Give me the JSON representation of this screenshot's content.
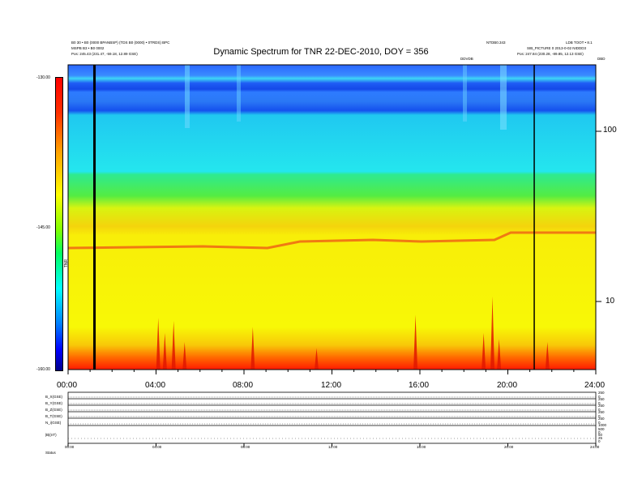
{
  "header": {
    "title": "Dynamic Spectrum for TNR 22-DEC-2010, DOY = 356",
    "left_line1": "B0 30 • B0 (0000 BPANBSP) (TDS B0 (0000) • 0TRDS) BPC",
    "left_line2": "MSPB B3 • B0 0002",
    "left_line3": "Pos:   245.43 (231.47, -59.18, 12.89 GSE)",
    "right_line1a": "NTDB0.343",
    "right_line1b": "LDB TOOT • 8.1",
    "right_line2": "SIB_PICTURE 0 2013-0-02 NIDDD3",
    "right_line3": "Pos:   247.84 (230.28, -89.85, 12.13 GSE)",
    "center_small": "DDVDB",
    "right_small": "DBD"
  },
  "chart_data": {
    "type": "heatmap",
    "title": "Dynamic Spectrum for TNR 22-DEC-2010, DOY = 356",
    "x_tick_labels": [
      "00:00",
      "04:00",
      "08:00",
      "12:00",
      "16:00",
      "20:00",
      "24:00"
    ],
    "x_range_hours": [
      0,
      24
    ],
    "y_scale": "log",
    "y_tick_labels": [
      "100",
      "10"
    ],
    "colorbar": {
      "label": "TNR",
      "ticks": [
        "-130.00",
        "-145.00",
        "-160.00"
      ],
      "range": [
        -160,
        -130
      ],
      "colors": [
        "#00008c",
        "#0000ff",
        "#00ffff",
        "#00ff00",
        "#ffff00",
        "#ff0000",
        "#ff0000"
      ]
    },
    "vertical_markers_hours": [
      1.2,
      21.2
    ],
    "bands": [
      {
        "label": "blue band",
        "color": "#2f6cff"
      },
      {
        "label": "cyan",
        "color": "#22ecf2"
      },
      {
        "label": "green",
        "color": "#3be96b"
      },
      {
        "label": "yellow",
        "color": "#fbfb07"
      },
      {
        "label": "red",
        "color": "#ff2200"
      }
    ],
    "bursts_hours": [
      4.1,
      4.4,
      4.8,
      5.3,
      8.4,
      11.3,
      15.8,
      18.9,
      19.3,
      19.6,
      21.8
    ]
  },
  "bottom": {
    "row_labels": [
      "B_X(GSE)",
      "B_Y(GSE)",
      "B_Z(GSE)",
      "B_T(GSE)",
      "N_i(GSE)",
      "|B|(nT)"
    ],
    "right_ticks": [
      "250",
      "0",
      "250",
      "0",
      "250",
      "0",
      "250",
      "0",
      "250",
      "0",
      "1000",
      "500",
      "0",
      "50",
      "25",
      "0"
    ],
    "x_tick_labels": [
      "00:00",
      "04:00",
      "08:00",
      "12:00",
      "16:00",
      "20:00",
      "24:00"
    ],
    "status_label": "Status"
  }
}
